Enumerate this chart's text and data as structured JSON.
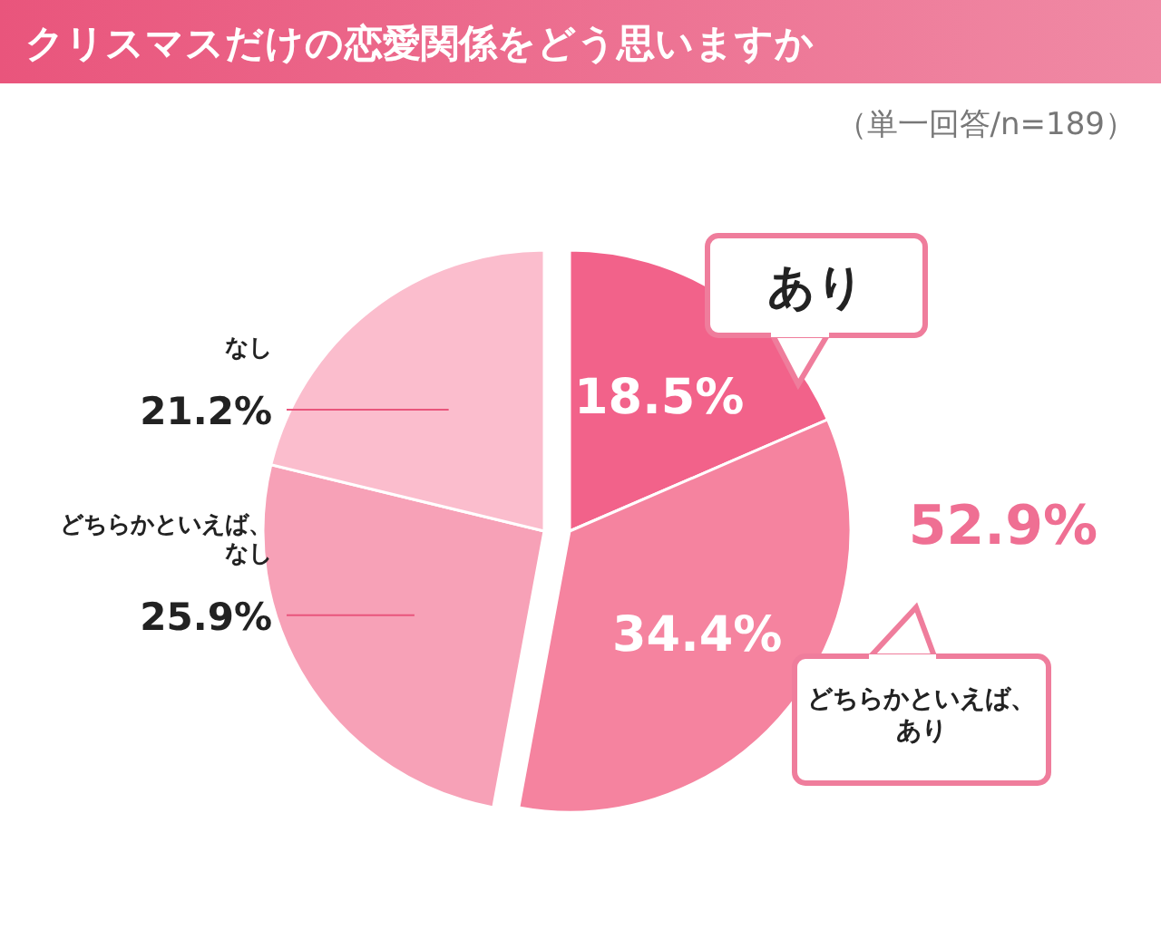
{
  "chart_data": {
    "type": "pie",
    "title": "クリスマスだけの恋愛関係をどう思いますか",
    "subtitle": "（単一回答/n=189）",
    "categories": [
      "あり",
      "どちらかといえば、あり",
      "どちらかといえば、なし",
      "なし"
    ],
    "values": [
      18.5,
      34.4,
      25.9,
      21.2
    ],
    "value_labels": [
      "18.5%",
      "34.4%",
      "25.9%",
      "21.2%"
    ],
    "colors": [
      "#f2628a",
      "#f5839f",
      "#f7a1b7",
      "#fbbdcd"
    ],
    "annotations": [
      "52.9%"
    ]
  }
}
